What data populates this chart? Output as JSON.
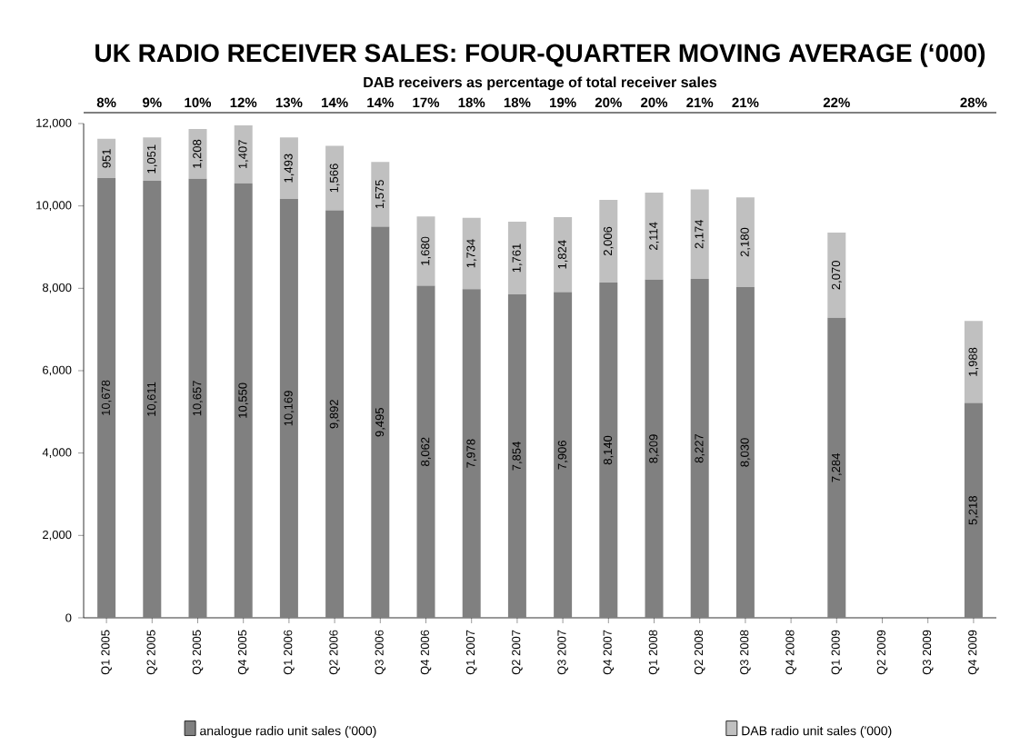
{
  "chart_data": {
    "type": "bar",
    "title": "UK RADIO RECEIVER SALES: FOUR-QUARTER MOVING AVERAGE (‘000)",
    "subtitle": "DAB receivers as percentage of total receiver sales",
    "categories": [
      "Q1 2005",
      "Q2 2005",
      "Q3 2005",
      "Q4 2005",
      "Q1 2006",
      "Q2 2006",
      "Q3 2006",
      "Q4 2006",
      "Q1 2007",
      "Q2 2007",
      "Q3 2007",
      "Q4 2007",
      "Q1 2008",
      "Q2 2008",
      "Q3 2008",
      "Q4 2008",
      "Q1 2009",
      "Q2 2009",
      "Q3 2009",
      "Q4 2009"
    ],
    "stacked": true,
    "series": [
      {
        "name": "analogue radio unit sales ('000)",
        "color": "#808080",
        "values": [
          10678,
          10611,
          10657,
          10550,
          10169,
          9892,
          9495,
          8062,
          7978,
          7854,
          7906,
          8140,
          8209,
          8227,
          8030,
          null,
          7284,
          null,
          null,
          5218
        ],
        "value_labels": [
          "10,678",
          "10,611",
          "10,657",
          "10,550",
          "10,169",
          "9,892",
          "9,495",
          "8,062",
          "7,978",
          "7,854",
          "7,906",
          "8,140",
          "8,209",
          "8,227",
          "8,030",
          null,
          "7,284",
          null,
          null,
          "5,218"
        ]
      },
      {
        "name": "DAB radio unit sales ('000)",
        "color": "#c0c0c0",
        "values": [
          951,
          1051,
          1208,
          1407,
          1493,
          1566,
          1575,
          1680,
          1734,
          1761,
          1824,
          2006,
          2114,
          2174,
          2180,
          null,
          2070,
          null,
          null,
          1988
        ],
        "value_labels": [
          "951",
          "1,051",
          "1,208",
          "1,407",
          "1,493",
          "1,566",
          "1,575",
          "1,680",
          "1,734",
          "1,761",
          "1,824",
          "2,006",
          "2,114",
          "2,174",
          "2,180",
          null,
          "2,070",
          null,
          null,
          "1,988"
        ]
      }
    ],
    "ylim": [
      0,
      12000
    ],
    "yticks": [
      0,
      {
        "value": 2000,
        "label": "2,000"
      },
      {
        "value": 4000,
        "label": "4,000"
      },
      {
        "value": 6000,
        "label": "6,000"
      },
      {
        "value": 8000,
        "label": "8,000"
      },
      {
        "value": 10000,
        "label": "10,000"
      },
      {
        "value": 12000,
        "label": "12,000"
      }
    ],
    "annotations": [
      "8%",
      "9%",
      "10%",
      "12%",
      "13%",
      "14%",
      "14%",
      "17%",
      "18%",
      "18%",
      "19%",
      "20%",
      "20%",
      "21%",
      "21%",
      "22%",
      "28%"
    ],
    "grid": false,
    "legend": "bottom"
  }
}
